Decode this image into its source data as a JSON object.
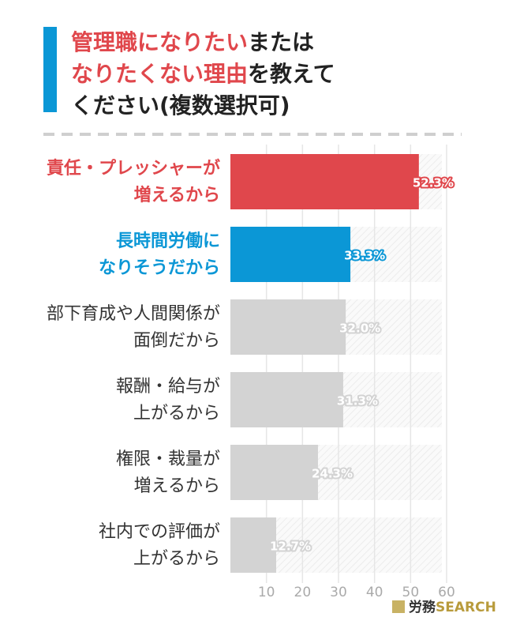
{
  "chart_data": {
    "type": "hbar",
    "title": [
      [
        {
          "text": "管理職になりたい",
          "color": "#e0474c"
        },
        {
          "text": "または",
          "color": "#222222"
        }
      ],
      [
        {
          "text": "なりたくない理由",
          "color": "#e0474c"
        },
        {
          "text": "を教えて",
          "color": "#222222"
        }
      ],
      [
        {
          "text": "ください(複数選択可)",
          "color": "#222222"
        }
      ]
    ],
    "categories": [
      [
        "責任・プレッシャーが",
        "増えるから"
      ],
      [
        "長時間労働に",
        "なりそうだから"
      ],
      [
        "部下育成や人間関係が",
        "面倒だから"
      ],
      [
        "報酬・給与が",
        "上がるから"
      ],
      [
        "権限・裁量が",
        "増えるから"
      ],
      [
        "社内での評価が",
        "上がるから"
      ]
    ],
    "values": [
      52.3,
      33.3,
      32.0,
      31.3,
      24.3,
      12.7
    ],
    "value_labels": [
      "52.3%",
      "33.3%",
      "32.0%",
      "31.3%",
      "24.3%",
      "12.7%"
    ],
    "colors": [
      "#e0474c",
      "#0b97d6",
      "#d3d3d3",
      "#d3d3d3",
      "#d3d3d3",
      "#d3d3d3"
    ],
    "label_colors": [
      "#e0474c",
      "#0b97d6",
      "#333333",
      "#333333",
      "#333333",
      "#333333"
    ],
    "xlim": [
      0,
      60
    ],
    "xticks": [
      10,
      20,
      30,
      40,
      50,
      60
    ],
    "grid": true
  },
  "footer": {
    "brand": [
      "労務",
      "SEARCH"
    ]
  }
}
